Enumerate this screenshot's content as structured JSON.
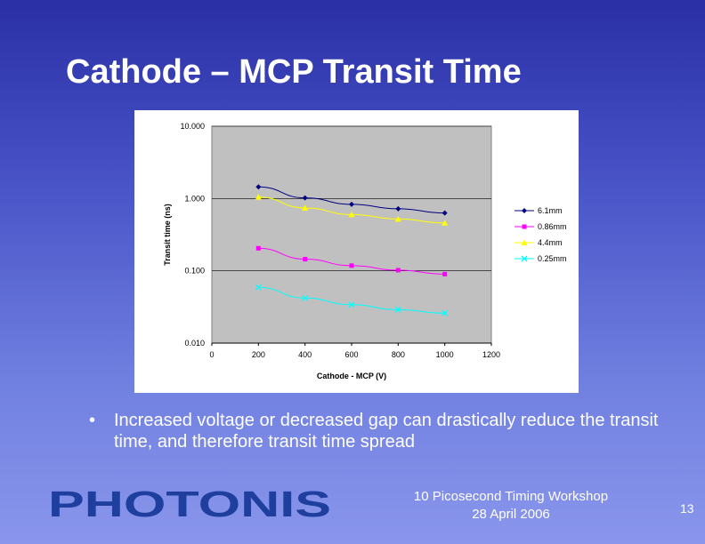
{
  "slide": {
    "title": "Cathode – MCP Transit Time",
    "bullet": "Increased voltage or decreased gap can drastically reduce the transit time, and therefore transit time spread",
    "logo_text": "PHOTONIS",
    "footer_line1": "10 Picosecond Timing Workshop",
    "footer_line2": "28 April 2006",
    "page_number": "13"
  },
  "chart_data": {
    "type": "line",
    "title": "",
    "xlabel": "Cathode - MCP (V)",
    "ylabel": "Transit time (ns)",
    "xlim": [
      0,
      1200
    ],
    "x_ticks": [
      0,
      200,
      400,
      600,
      800,
      1000,
      1200
    ],
    "ylim": [
      0.01,
      10
    ],
    "y_scale": "log",
    "y_ticks": [
      10,
      1,
      0.1,
      0.01
    ],
    "y_tick_labels": [
      "10.000",
      "1.000",
      "0.100",
      "0.010"
    ],
    "grid": "horizontal",
    "legend_position": "right",
    "plot_background": "#c0c0c0",
    "x": [
      200,
      400,
      600,
      800,
      1000
    ],
    "series": [
      {
        "name": "6.1mm",
        "values": [
          1.45,
          1.02,
          0.83,
          0.72,
          0.63
        ],
        "color": "#000080",
        "marker": "diamond"
      },
      {
        "name": "0.86mm",
        "values": [
          0.205,
          0.145,
          0.118,
          0.102,
          0.09
        ],
        "color": "#ff00ff",
        "marker": "square"
      },
      {
        "name": "4.4mm",
        "values": [
          1.05,
          0.74,
          0.6,
          0.52,
          0.46
        ],
        "color": "#ffff00",
        "marker": "triangle"
      },
      {
        "name": "0.25mm",
        "values": [
          0.059,
          0.042,
          0.034,
          0.029,
          0.026
        ],
        "color": "#00ffff",
        "marker": "x"
      }
    ]
  }
}
